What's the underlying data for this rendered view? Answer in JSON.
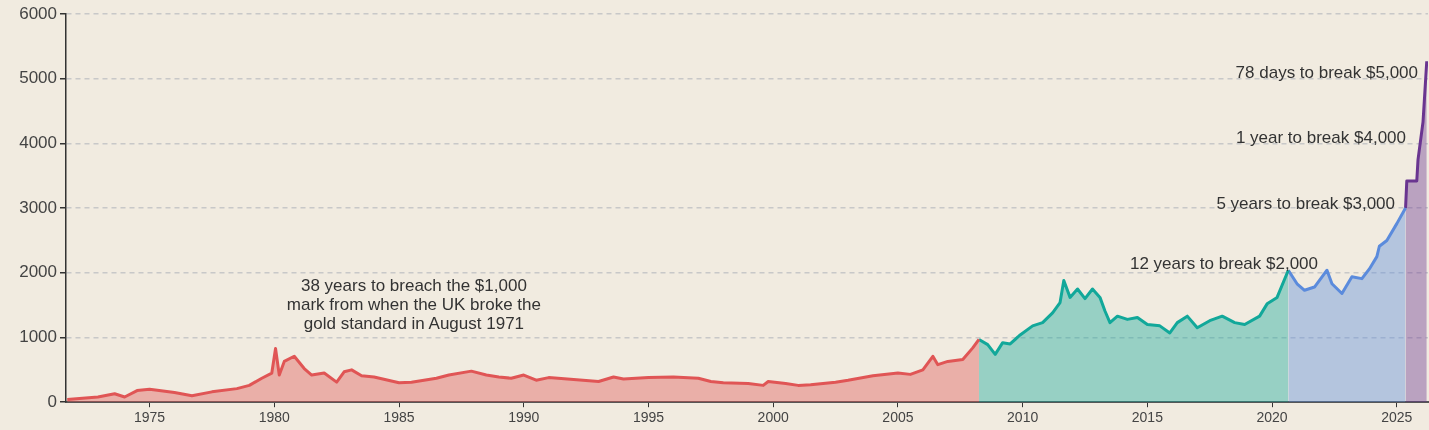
{
  "chart_data": {
    "type": "area",
    "xlim": [
      1971.65,
      2026.25
    ],
    "xticks": [
      1975,
      1980,
      1985,
      1990,
      1995,
      2000,
      2005,
      2010,
      2015,
      2020,
      2025
    ],
    "ylim": [
      0,
      6000
    ],
    "yticks": [
      0,
      1000,
      2000,
      3000,
      4000,
      5000,
      6000
    ],
    "grid": "y",
    "legend": false,
    "series": [
      {
        "color": "#e05555",
        "x": [
          1971.7,
          1972.93,
          1973.6,
          1974.0,
          1974.5,
          1975.0,
          1976.0,
          1976.7,
          1977.5,
          1978.5,
          1979.0,
          1979.5,
          1979.9,
          1980.05,
          1980.2,
          1980.4,
          1980.8,
          1981.2,
          1981.5,
          1982.0,
          1982.5,
          1982.8,
          1983.1,
          1983.5,
          1984.0,
          1985.0,
          1985.5,
          1986.0,
          1986.5,
          1987.0,
          1987.9,
          1988.5,
          1989.0,
          1989.5,
          1990.0,
          1990.5,
          1991.0,
          1992.0,
          1993.0,
          1993.6,
          1994.0,
          1995.0,
          1996.0,
          1997.0,
          1997.5,
          1998.0,
          1999.0,
          1999.6,
          1999.8,
          2000.5,
          2001.0,
          2001.5,
          2002.5,
          2003.0,
          2004.0,
          2005.0,
          2005.5,
          2006.0,
          2006.4,
          2006.6,
          2007.0,
          2007.6,
          2008.0,
          2008.25
        ],
        "values": [
          40,
          80,
          130,
          80,
          180,
          200,
          150,
          100,
          160,
          210,
          260,
          370,
          450,
          830,
          420,
          630,
          710,
          520,
          420,
          450,
          310,
          470,
          500,
          410,
          390,
          300,
          310,
          340,
          370,
          420,
          480,
          420,
          390,
          370,
          420,
          340,
          380,
          350,
          320,
          390,
          360,
          380,
          390,
          370,
          320,
          300,
          290,
          260,
          320,
          290,
          260,
          270,
          310,
          340,
          410,
          450,
          430,
          500,
          710,
          580,
          630,
          660,
          840,
          970
        ]
      },
      {
        "color": "#12a89a",
        "x": [
          2008.25,
          2008.6,
          2008.9,
          2009.2,
          2009.5,
          2009.9,
          2010.4,
          2010.8,
          2011.2,
          2011.5,
          2011.65,
          2011.9,
          2012.2,
          2012.5,
          2012.8,
          2013.1,
          2013.3,
          2013.5,
          2013.8,
          2014.2,
          2014.6,
          2015.0,
          2015.5,
          2015.9,
          2016.2,
          2016.6,
          2017.0,
          2017.5,
          2018.0,
          2018.5,
          2018.9,
          2019.5,
          2019.8,
          2020.2,
          2020.65
        ],
        "values": [
          970,
          890,
          740,
          920,
          900,
          1040,
          1180,
          1230,
          1380,
          1540,
          1880,
          1620,
          1750,
          1600,
          1750,
          1620,
          1410,
          1230,
          1330,
          1280,
          1310,
          1200,
          1180,
          1070,
          1230,
          1330,
          1150,
          1260,
          1330,
          1230,
          1200,
          1330,
          1520,
          1620,
          2040
        ]
      },
      {
        "color": "#5b8bdc",
        "x": [
          2020.65,
          2021.0,
          2021.3,
          2021.7,
          2022.2,
          2022.4,
          2022.8,
          2023.2,
          2023.6,
          2023.9,
          2024.2,
          2024.3,
          2024.6,
          2025.0,
          2025.35
        ],
        "values": [
          2040,
          1830,
          1730,
          1780,
          2040,
          1830,
          1680,
          1940,
          1910,
          2060,
          2250,
          2410,
          2500,
          2760,
          3000
        ]
      },
      {
        "color": "#6a3590",
        "x": [
          2025.35,
          2025.4,
          2025.8,
          2025.85,
          2026.05,
          2026.2
        ],
        "values": [
          3000,
          3420,
          3420,
          3750,
          4330,
          5270
        ]
      }
    ],
    "annotations": [
      "38 years to breach the $1,000 mark from when the UK broke the gold standard in August 1971",
      "12 years to break $2,000",
      "5 years to break $3,000",
      "1 year to break $4,000",
      "78 days to break $5,000"
    ]
  }
}
